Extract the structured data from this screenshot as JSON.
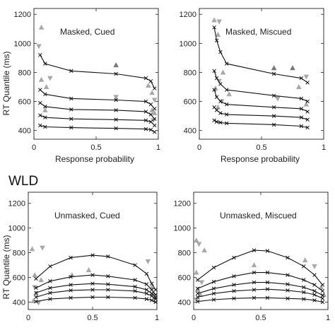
{
  "figure": {
    "section_heading": "WLD",
    "ylabel": "RT Quantile (ms)",
    "xlabel_top_row": "Response probability"
  },
  "colors": {
    "model_line": "#111111",
    "observed_markers": "#a8a8a8",
    "upper_quantile_marker": "#777777"
  },
  "chart_data": [
    {
      "type": "line",
      "title": "Masked, Cued",
      "xlabel": "Response probability",
      "ylabel": "RT Quantile (ms)",
      "xlim": [
        0,
        1
      ],
      "ylim": [
        340,
        1240
      ],
      "xticks": [
        0,
        0.5,
        1
      ],
      "yticks": [
        400,
        600,
        800,
        1000,
        1200
      ],
      "grid": false,
      "series": [
        {
          "x": [
            0.05,
            0.09,
            0.3,
            0.66,
            0.9,
            0.94,
            0.97
          ],
          "y": [
            920,
            860,
            810,
            790,
            760,
            740,
            690
          ]
        },
        {
          "x": [
            0.05,
            0.09,
            0.3,
            0.66,
            0.9,
            0.94,
            0.97
          ],
          "y": [
            680,
            650,
            620,
            610,
            600,
            580,
            550
          ]
        },
        {
          "x": [
            0.05,
            0.09,
            0.3,
            0.66,
            0.9,
            0.94,
            0.97
          ],
          "y": [
            590,
            565,
            545,
            540,
            530,
            510,
            480
          ]
        },
        {
          "x": [
            0.05,
            0.09,
            0.3,
            0.66,
            0.9,
            0.94,
            0.97
          ],
          "y": [
            505,
            490,
            480,
            475,
            470,
            460,
            435
          ]
        },
        {
          "x": [
            0.05,
            0.09,
            0.3,
            0.66,
            0.9,
            0.94,
            0.97
          ],
          "y": [
            435,
            425,
            420,
            415,
            410,
            405,
            390
          ]
        }
      ],
      "observed": [
        {
          "x": 0.06,
          "y": 1110
        },
        {
          "x": 0.04,
          "y": 980
        },
        {
          "x": 0.06,
          "y": 750
        },
        {
          "x": 0.1,
          "y": 700
        },
        {
          "x": 0.13,
          "y": 760
        },
        {
          "x": 0.09,
          "y": 540
        },
        {
          "x": 0.66,
          "y": 850
        },
        {
          "x": 0.66,
          "y": 630
        },
        {
          "x": 0.92,
          "y": 710
        },
        {
          "x": 0.95,
          "y": 660
        },
        {
          "x": 0.97,
          "y": 610
        },
        {
          "x": 0.95,
          "y": 540
        },
        {
          "x": 0.97,
          "y": 520
        },
        {
          "x": 0.96,
          "y": 470
        }
      ]
    },
    {
      "type": "line",
      "title": "Masked, Miscued",
      "xlabel": "Response probability",
      "ylabel": "",
      "xlim": [
        0,
        1
      ],
      "ylim": [
        340,
        1240
      ],
      "xticks": [
        0,
        0.5,
        1
      ],
      "yticks": [
        400,
        600,
        800,
        1000,
        1200
      ],
      "grid": false,
      "series": [
        {
          "x": [
            0.12,
            0.14,
            0.17,
            0.22,
            0.6,
            0.82,
            0.87
          ],
          "y": [
            1110,
            1020,
            940,
            860,
            790,
            760,
            730
          ]
        },
        {
          "x": [
            0.12,
            0.14,
            0.17,
            0.22,
            0.6,
            0.82,
            0.87
          ],
          "y": [
            810,
            760,
            720,
            680,
            640,
            620,
            600
          ]
        },
        {
          "x": [
            0.12,
            0.14,
            0.17,
            0.22,
            0.6,
            0.82,
            0.87
          ],
          "y": [
            680,
            630,
            600,
            580,
            560,
            550,
            530
          ]
        },
        {
          "x": [
            0.12,
            0.14,
            0.17,
            0.22,
            0.6,
            0.82,
            0.87
          ],
          "y": [
            560,
            540,
            520,
            510,
            500,
            490,
            475
          ]
        },
        {
          "x": [
            0.12,
            0.14,
            0.17,
            0.22,
            0.6,
            0.82,
            0.87
          ],
          "y": [
            470,
            460,
            455,
            450,
            440,
            430,
            420
          ]
        }
      ],
      "observed": [
        {
          "x": 0.12,
          "y": 1160
        },
        {
          "x": 0.16,
          "y": 1150
        },
        {
          "x": 0.15,
          "y": 1060
        },
        {
          "x": 0.19,
          "y": 800
        },
        {
          "x": 0.16,
          "y": 740
        },
        {
          "x": 0.13,
          "y": 690
        },
        {
          "x": 0.24,
          "y": 650
        },
        {
          "x": 0.18,
          "y": 600
        },
        {
          "x": 0.15,
          "y": 560
        },
        {
          "x": 0.6,
          "y": 830
        },
        {
          "x": 0.63,
          "y": 620
        },
        {
          "x": 0.75,
          "y": 830
        },
        {
          "x": 0.8,
          "y": 700
        },
        {
          "x": 0.86,
          "y": 770
        },
        {
          "x": 0.86,
          "y": 580
        }
      ]
    },
    {
      "type": "line",
      "title": "Unmasked, Cued",
      "xlabel": "",
      "ylabel": "RT Quantile (ms)",
      "xlim": [
        0,
        1
      ],
      "ylim": [
        340,
        1290
      ],
      "xticks": [
        0,
        0.5,
        1
      ],
      "yticks": [
        400,
        600,
        800,
        1000,
        1200
      ],
      "grid": false,
      "series": [
        {
          "x": [
            0.06,
            0.17,
            0.33,
            0.5,
            0.62,
            0.83,
            0.92,
            0.96,
            0.99
          ],
          "y": [
            590,
            690,
            760,
            780,
            770,
            700,
            630,
            550,
            500
          ]
        },
        {
          "x": [
            0.06,
            0.17,
            0.33,
            0.5,
            0.62,
            0.83,
            0.92,
            0.96,
            0.99
          ],
          "y": [
            515,
            570,
            605,
            620,
            610,
            580,
            545,
            500,
            460
          ]
        },
        {
          "x": [
            0.06,
            0.17,
            0.33,
            0.5,
            0.62,
            0.83,
            0.92,
            0.96,
            0.99
          ],
          "y": [
            475,
            515,
            540,
            550,
            545,
            525,
            500,
            470,
            440
          ]
        },
        {
          "x": [
            0.06,
            0.17,
            0.33,
            0.5,
            0.62,
            0.83,
            0.92,
            0.96,
            0.99
          ],
          "y": [
            440,
            475,
            495,
            500,
            500,
            490,
            470,
            450,
            425
          ]
        },
        {
          "x": [
            0.06,
            0.17,
            0.33,
            0.5,
            0.62,
            0.83,
            0.92,
            0.96,
            0.99
          ],
          "y": [
            405,
            425,
            435,
            440,
            440,
            435,
            425,
            415,
            400
          ]
        }
      ],
      "observed": [
        {
          "x": 0.03,
          "y": 830
        },
        {
          "x": 0.11,
          "y": 840
        },
        {
          "x": 0.05,
          "y": 620
        },
        {
          "x": 0.1,
          "y": 580
        },
        {
          "x": 0.05,
          "y": 520
        },
        {
          "x": 0.06,
          "y": 470
        },
        {
          "x": 0.04,
          "y": 410
        },
        {
          "x": 0.08,
          "y": 395
        },
        {
          "x": 0.47,
          "y": 660
        },
        {
          "x": 0.34,
          "y": 620
        },
        {
          "x": 0.93,
          "y": 730
        },
        {
          "x": 0.96,
          "y": 520
        },
        {
          "x": 0.97,
          "y": 470
        },
        {
          "x": 0.98,
          "y": 430
        }
      ]
    },
    {
      "type": "line",
      "title": "Unmasked, Miscued",
      "xlabel": "",
      "ylabel": "",
      "xlim": [
        0,
        1
      ],
      "ylim": [
        340,
        1290
      ],
      "xticks": [
        0,
        0.5,
        1
      ],
      "yticks": [
        400,
        600,
        800,
        1000,
        1200
      ],
      "grid": false,
      "series": [
        {
          "x": [
            0.03,
            0.15,
            0.3,
            0.45,
            0.55,
            0.7,
            0.82,
            0.9,
            0.96
          ],
          "y": [
            580,
            680,
            760,
            820,
            815,
            760,
            690,
            620,
            540
          ]
        },
        {
          "x": [
            0.03,
            0.15,
            0.3,
            0.45,
            0.55,
            0.7,
            0.82,
            0.9,
            0.96
          ],
          "y": [
            510,
            565,
            610,
            640,
            640,
            620,
            580,
            540,
            490
          ]
        },
        {
          "x": [
            0.03,
            0.15,
            0.3,
            0.45,
            0.55,
            0.7,
            0.82,
            0.9,
            0.96
          ],
          "y": [
            470,
            510,
            540,
            560,
            560,
            545,
            520,
            490,
            455
          ]
        },
        {
          "x": [
            0.03,
            0.15,
            0.3,
            0.45,
            0.55,
            0.7,
            0.82,
            0.9,
            0.96
          ],
          "y": [
            440,
            470,
            490,
            500,
            505,
            495,
            480,
            460,
            430
          ]
        },
        {
          "x": [
            0.03,
            0.15,
            0.3,
            0.45,
            0.55,
            0.7,
            0.82,
            0.9,
            0.96
          ],
          "y": [
            405,
            420,
            430,
            435,
            435,
            430,
            425,
            415,
            400
          ]
        }
      ],
      "observed": [
        {
          "x": 0.02,
          "y": 900
        },
        {
          "x": 0.04,
          "y": 870
        },
        {
          "x": 0.08,
          "y": 820
        },
        {
          "x": 0.02,
          "y": 640
        },
        {
          "x": 0.06,
          "y": 560
        },
        {
          "x": 0.03,
          "y": 500
        },
        {
          "x": 0.05,
          "y": 460
        },
        {
          "x": 0.02,
          "y": 420
        },
        {
          "x": 0.45,
          "y": 700
        },
        {
          "x": 0.83,
          "y": 740
        },
        {
          "x": 0.9,
          "y": 690
        },
        {
          "x": 0.95,
          "y": 520
        },
        {
          "x": 0.97,
          "y": 460
        }
      ]
    }
  ]
}
